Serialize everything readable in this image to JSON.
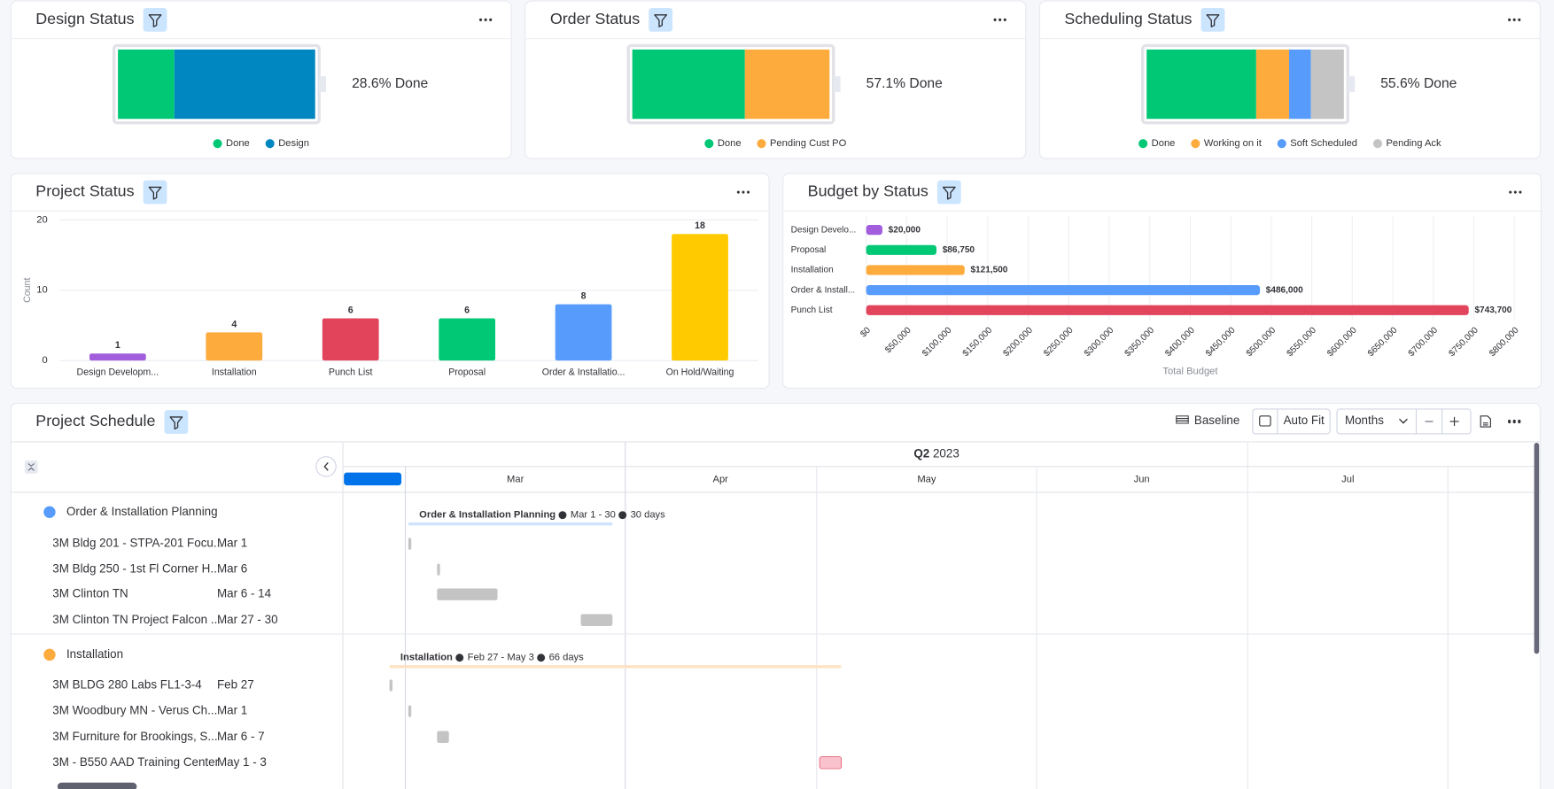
{
  "chart_data": [
    {
      "type": "battery",
      "title": "Design Status",
      "summary": "28.6% Done",
      "categories": [
        "Done",
        "Design"
      ],
      "values": [
        28.6,
        71.4
      ],
      "colors": [
        "#00c875",
        "#0086c0"
      ]
    },
    {
      "type": "battery",
      "title": "Order Status",
      "summary": "57.1% Done",
      "categories": [
        "Done",
        "Pending Cust PO"
      ],
      "values": [
        57.1,
        42.9
      ],
      "colors": [
        "#00c875",
        "#fdab3d"
      ]
    },
    {
      "type": "battery",
      "title": "Scheduling Status",
      "summary": "55.6% Done",
      "categories": [
        "Done",
        "Working on it",
        "Soft Scheduled",
        "Pending Ack"
      ],
      "values": [
        55.6,
        16.7,
        11.1,
        16.7
      ],
      "colors": [
        "#00c875",
        "#fdab3d",
        "#579bfc",
        "#c4c4c4"
      ]
    },
    {
      "type": "bar",
      "title": "Project Status",
      "y_label": "Count",
      "categories": [
        "Design Developm...",
        "Installation",
        "Punch List",
        "Proposal",
        "Order & Installatio...",
        "On Hold/Waiting"
      ],
      "values": [
        1,
        4,
        6,
        6,
        8,
        18
      ],
      "colors": [
        "#a25ddc",
        "#fdab3d",
        "#e2445c",
        "#00c875",
        "#579bfc",
        "#ffcb00"
      ],
      "ylim": [
        0,
        20
      ],
      "yticks": [
        0,
        10,
        20
      ],
      "grid": true
    },
    {
      "type": "hbar",
      "title": "Budget by Status",
      "x_label": "Total Budget",
      "categories": [
        "Design Develo...",
        "Proposal",
        "Installation",
        "Order & Install...",
        "Punch List"
      ],
      "values": [
        20000,
        86750,
        121500,
        486000,
        743700
      ],
      "value_labels": [
        "$20,000",
        "$86,750",
        "$121,500",
        "$486,000",
        "$743,700"
      ],
      "colors": [
        "#a25ddc",
        "#00c875",
        "#fdab3d",
        "#579bfc",
        "#e2445c"
      ],
      "xlim": [
        0,
        800000
      ],
      "xticks": [
        {
          "value": 0,
          "label": "$0"
        },
        {
          "value": 50000,
          "label": "$50,000"
        },
        {
          "value": 100000,
          "label": "$100,000"
        },
        {
          "value": 150000,
          "label": "$150,000"
        },
        {
          "value": 200000,
          "label": "$200,000"
        },
        {
          "value": 250000,
          "label": "$250,000"
        },
        {
          "value": 300000,
          "label": "$300,000"
        },
        {
          "value": 350000,
          "label": "$350,000"
        },
        {
          "value": 400000,
          "label": "$400,000"
        },
        {
          "value": 450000,
          "label": "$450,000"
        },
        {
          "value": 500000,
          "label": "$500,000"
        },
        {
          "value": 550000,
          "label": "$550,000"
        },
        {
          "value": 600000,
          "label": "$600,000"
        },
        {
          "value": 650000,
          "label": "$650,000"
        },
        {
          "value": 700000,
          "label": "$700,000"
        },
        {
          "value": 750000,
          "label": "$750,000"
        },
        {
          "value": 800000,
          "label": "$800,000"
        }
      ],
      "grid": true
    }
  ],
  "schedule": {
    "title": "Project Schedule",
    "toolbar": {
      "baseline": "Baseline",
      "auto_fit": "Auto Fit",
      "view": "Months"
    },
    "timeline": {
      "quarter": "Q2",
      "year": "2023",
      "months": [
        "Mar",
        "Apr",
        "May",
        "Jun",
        "Jul"
      ]
    },
    "groups": [
      {
        "name": "Order & Installation Planning",
        "color": "#579bfc",
        "range": "Mar 1 - 30",
        "duration": "30 days",
        "items": [
          {
            "name": "3M Bldg 201 - STPA-201 Focu...",
            "dates": "Mar 1"
          },
          {
            "name": "3M Bldg 250 - 1st Fl Corner H...",
            "dates": "Mar 6"
          },
          {
            "name": "3M Clinton TN",
            "dates": "Mar 6 - 14"
          },
          {
            "name": "3M Clinton TN Project Falcon ...",
            "dates": "Mar 27 - 30"
          }
        ]
      },
      {
        "name": "Installation",
        "color": "#fdab3d",
        "range": "Feb 27 - May 3",
        "duration": "66 days",
        "items": [
          {
            "name": "3M BLDG 280 Labs FL1-3-4",
            "dates": "Feb 27"
          },
          {
            "name": "3M Woodbury MN - Verus Ch...",
            "dates": "Mar 1"
          },
          {
            "name": "3M Furniture for Brookings, S...",
            "dates": "Mar 6 - 7"
          },
          {
            "name": "3M - B550 AAD Training Center",
            "dates": "May 1 - 3"
          }
        ]
      }
    ]
  }
}
